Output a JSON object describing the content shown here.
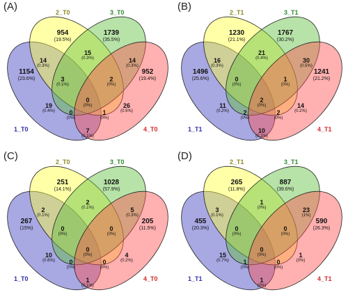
{
  "colors": {
    "set1_fill": "#3f3fbf",
    "set2_fill": "#ffff3f",
    "set3_fill": "#5fbf3f",
    "set4_fill": "#ff4f4f",
    "set1_label": "#2f2fa8",
    "set2_label": "#8c8a24",
    "set3_label": "#2f8a2f",
    "set4_label": "#d42a2a"
  },
  "panels": [
    {
      "label": "(A)",
      "sets": [
        "1_T0",
        "2_T0",
        "3_T0",
        "4_T0"
      ],
      "regions": {
        "a1": {
          "count": "1154",
          "pct": "(23.6%)"
        },
        "a2": {
          "count": "954",
          "pct": "(19.5%)"
        },
        "a3": {
          "count": "1739",
          "pct": "(35.5%)"
        },
        "a4": {
          "count": "952",
          "pct": "(19.4%)"
        },
        "a12": {
          "count": "14",
          "pct": "(0.3%)"
        },
        "a23": {
          "count": "15",
          "pct": "(0.3%)"
        },
        "a34": {
          "count": "14",
          "pct": "(0.3%)"
        },
        "a123": {
          "count": "3",
          "pct": "(0.1%)"
        },
        "a234": {
          "count": "2",
          "pct": "(0%)"
        },
        "a1234": {
          "count": "0",
          "pct": "(0%)"
        },
        "a13": {
          "count": "19",
          "pct": "(0.4%)"
        },
        "a24": {
          "count": "26",
          "pct": "(0.5%)"
        },
        "a134": {
          "count": "0",
          "pct": "(0%)"
        },
        "a124": {
          "count": "1",
          "pct": "(0%)"
        },
        "a14": {
          "count": "7",
          "pct": "(0.1%)"
        }
      }
    },
    {
      "label": "(B)",
      "sets": [
        "1_T1",
        "2_T1",
        "3_T1",
        "4_T1"
      ],
      "regions": {
        "a1": {
          "count": "1496",
          "pct": "(25.6%)"
        },
        "a2": {
          "count": "1230",
          "pct": "(21.1%)"
        },
        "a3": {
          "count": "1767",
          "pct": "(30.2%)"
        },
        "a4": {
          "count": "1241",
          "pct": "(21.2%)"
        },
        "a12": {
          "count": "16",
          "pct": "(0.3%)"
        },
        "a23": {
          "count": "21",
          "pct": "(0.4%)"
        },
        "a34": {
          "count": "30",
          "pct": "(0.5%)"
        },
        "a123": {
          "count": "0",
          "pct": "(0%)"
        },
        "a234": {
          "count": "1",
          "pct": "(0%)"
        },
        "a1234": {
          "count": "2",
          "pct": "(0%)"
        },
        "a13": {
          "count": "11",
          "pct": "(0.2%)"
        },
        "a24": {
          "count": "14",
          "pct": "(0.2%)"
        },
        "a134": {
          "count": "2",
          "pct": "(0%)"
        },
        "a124": {
          "count": "2",
          "pct": "(0%)"
        },
        "a14": {
          "count": "10",
          "pct": "(0.2%)"
        }
      }
    },
    {
      "label": "(C)",
      "sets": [
        "1_T0",
        "2_T0",
        "3_T0",
        "4_T0"
      ],
      "regions": {
        "a1": {
          "count": "267",
          "pct": "(15%)"
        },
        "a2": {
          "count": "251",
          "pct": "(14.1%)"
        },
        "a3": {
          "count": "1028",
          "pct": "(57.9%)"
        },
        "a4": {
          "count": "205",
          "pct": "(11.5%)"
        },
        "a12": {
          "count": "2",
          "pct": "(0.1%)"
        },
        "a23": {
          "count": "2",
          "pct": "(0.1%)"
        },
        "a34": {
          "count": "5",
          "pct": "(0.3%)"
        },
        "a123": {
          "count": "0",
          "pct": "(0%)"
        },
        "a234": {
          "count": "0",
          "pct": "(0%)"
        },
        "a1234": {
          "count": "0",
          "pct": "(0%)"
        },
        "a13": {
          "count": "10",
          "pct": "(0.6%)"
        },
        "a24": {
          "count": "4",
          "pct": "(0.2%)"
        },
        "a134": {
          "count": "0",
          "pct": "(0%)"
        },
        "a124": {
          "count": "0",
          "pct": "(0%)"
        },
        "a14": {
          "count": "1",
          "pct": "(0.1%)"
        }
      }
    },
    {
      "label": "(D)",
      "sets": [
        "1_T1",
        "2_T1",
        "3_T1",
        "4_T1"
      ],
      "regions": {
        "a1": {
          "count": "455",
          "pct": "(20.3%)"
        },
        "a2": {
          "count": "265",
          "pct": "(11.8%)"
        },
        "a3": {
          "count": "887",
          "pct": "(39.6%)"
        },
        "a4": {
          "count": "590",
          "pct": "(26.3%)"
        },
        "a12": {
          "count": "3",
          "pct": "(0.1%)"
        },
        "a23": {
          "count": "1",
          "pct": "(0%)"
        },
        "a34": {
          "count": "23",
          "pct": "(1%)"
        },
        "a123": {
          "count": "0",
          "pct": "(0%)"
        },
        "a234": {
          "count": "0",
          "pct": "(0%)"
        },
        "a1234": {
          "count": "0",
          "pct": "(0%)"
        },
        "a13": {
          "count": "15",
          "pct": "(0.7%)"
        },
        "a24": {
          "count": "1",
          "pct": "(0%)"
        },
        "a134": {
          "count": "1",
          "pct": "(0%)"
        },
        "a124": {
          "count": "0",
          "pct": "(0%)"
        },
        "a14": {
          "count": "1",
          "pct": "(0%)"
        }
      }
    }
  ]
}
